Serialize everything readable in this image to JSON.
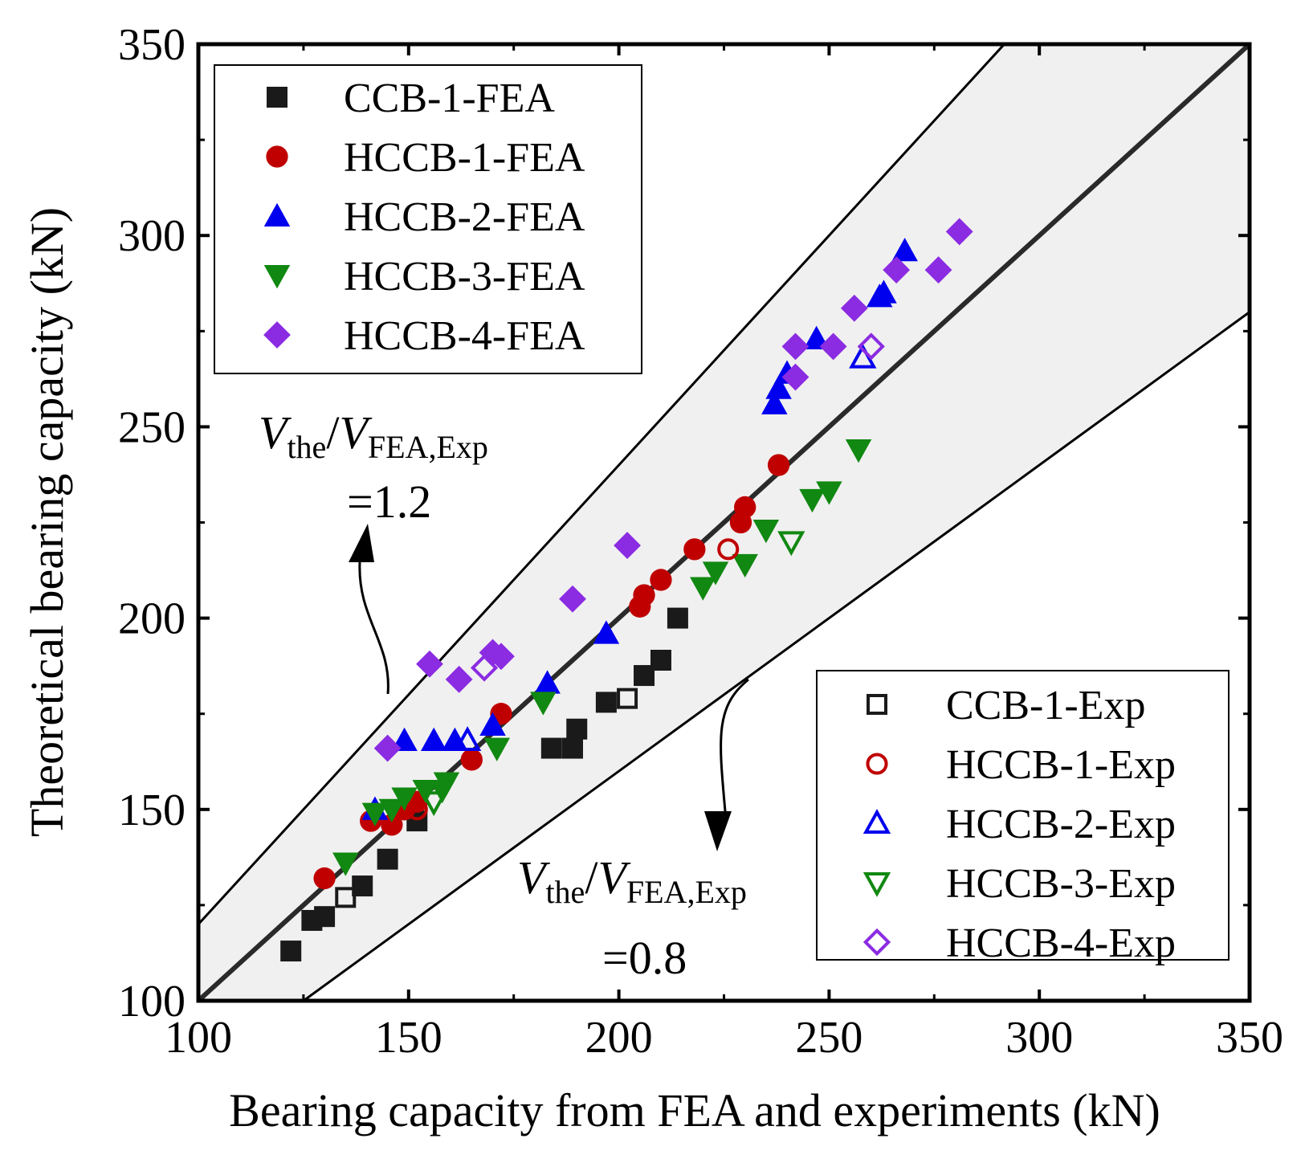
{
  "chart_data": {
    "type": "scatter",
    "title": "",
    "xlabel": "Bearing capacity from FEA and experiments (kN)",
    "ylabel": "Theoretical bearing capacity (kN)",
    "xlim": [
      100,
      350
    ],
    "ylim": [
      100,
      350
    ],
    "xticks": [
      100,
      150,
      200,
      250,
      300,
      350
    ],
    "yticks": [
      100,
      150,
      200,
      250,
      300,
      350
    ],
    "xtick_labels": [
      "100",
      "150",
      "200",
      "250",
      "300",
      "350"
    ],
    "ytick_labels": [
      "100",
      "150",
      "200",
      "250",
      "300",
      "350"
    ],
    "grid": false,
    "reference_lines": [
      {
        "name": "equality",
        "slope": 1.0
      },
      {
        "name": "upper",
        "slope": 1.2
      },
      {
        "name": "lower",
        "slope": 0.8
      }
    ],
    "annotations": {
      "upper": {
        "v1": "V",
        "s1": "the",
        "slash": "/",
        "v2": "V",
        "s2": "FEA,Exp",
        "value": "=1.2"
      },
      "lower": {
        "v1": "V",
        "s1": "the",
        "slash": "/",
        "v2": "V",
        "s2": "FEA,Exp",
        "value": "=0.8"
      }
    },
    "series": [
      {
        "name": "CCB-1-FEA",
        "marker": "square",
        "filled": true,
        "color": "#1a1a1a",
        "points": [
          [
            122,
            113
          ],
          [
            127,
            121
          ],
          [
            130,
            122
          ],
          [
            139,
            130
          ],
          [
            145,
            137
          ],
          [
            152,
            147
          ],
          [
            184,
            166
          ],
          [
            189,
            166
          ],
          [
            190,
            171
          ],
          [
            197,
            178
          ],
          [
            206,
            185
          ],
          [
            210,
            189
          ],
          [
            214,
            200
          ]
        ]
      },
      {
        "name": "HCCB-1-FEA",
        "marker": "circle",
        "filled": true,
        "color": "#c00000",
        "points": [
          [
            130,
            132
          ],
          [
            141,
            147
          ],
          [
            146,
            146
          ],
          [
            149,
            150
          ],
          [
            152,
            152
          ],
          [
            165,
            163
          ],
          [
            172,
            175
          ],
          [
            205,
            203
          ],
          [
            206,
            206
          ],
          [
            210,
            210
          ],
          [
            218,
            218
          ],
          [
            229,
            225
          ],
          [
            230,
            229
          ],
          [
            238,
            240
          ]
        ]
      },
      {
        "name": "HCCB-2-FEA",
        "marker": "triangle-up",
        "filled": true,
        "color": "#0000ee",
        "points": [
          [
            142,
            150
          ],
          [
            149,
            168
          ],
          [
            156,
            168
          ],
          [
            161,
            168
          ],
          [
            170,
            172
          ],
          [
            183,
            183
          ],
          [
            197,
            196
          ],
          [
            237,
            256
          ],
          [
            238,
            260
          ],
          [
            240,
            264
          ],
          [
            247,
            273
          ],
          [
            262,
            284
          ],
          [
            263,
            285
          ],
          [
            268,
            296
          ]
        ]
      },
      {
        "name": "HCCB-3-FEA",
        "marker": "triangle-down",
        "filled": true,
        "color": "#118811",
        "points": [
          [
            135,
            136
          ],
          [
            142,
            149
          ],
          [
            146,
            150
          ],
          [
            149,
            153
          ],
          [
            154,
            155
          ],
          [
            158,
            155
          ],
          [
            159,
            157
          ],
          [
            171,
            166
          ],
          [
            182,
            178
          ],
          [
            220,
            208
          ],
          [
            223,
            212
          ],
          [
            230,
            214
          ],
          [
            235,
            223
          ],
          [
            246,
            231
          ],
          [
            250,
            233
          ],
          [
            257,
            244
          ]
        ]
      },
      {
        "name": "HCCB-4-FEA",
        "marker": "diamond",
        "filled": true,
        "color": "#8b2be2",
        "points": [
          [
            145,
            166
          ],
          [
            155,
            188
          ],
          [
            162,
            184
          ],
          [
            172,
            190
          ],
          [
            170,
            191
          ],
          [
            189,
            205
          ],
          [
            202,
            219
          ],
          [
            242,
            263
          ],
          [
            242,
            271
          ],
          [
            251,
            271
          ],
          [
            256,
            281
          ],
          [
            266,
            291
          ],
          [
            276,
            291
          ],
          [
            281,
            301
          ]
        ]
      },
      {
        "name": "CCB-1-Exp",
        "marker": "square",
        "filled": false,
        "color": "#1a1a1a",
        "points": [
          [
            135,
            127
          ],
          [
            202,
            179
          ]
        ]
      },
      {
        "name": "HCCB-1-Exp",
        "marker": "circle",
        "filled": false,
        "color": "#c00000",
        "points": [
          [
            152,
            150
          ],
          [
            226,
            218
          ]
        ]
      },
      {
        "name": "HCCB-2-Exp",
        "marker": "triangle-up",
        "filled": false,
        "color": "#0000ee",
        "points": [
          [
            164,
            168
          ],
          [
            258,
            268
          ]
        ]
      },
      {
        "name": "HCCB-3-Exp",
        "marker": "triangle-down",
        "filled": false,
        "color": "#118811",
        "points": [
          [
            156,
            152
          ],
          [
            241,
            220
          ]
        ]
      },
      {
        "name": "HCCB-4-Exp",
        "marker": "diamond",
        "filled": false,
        "color": "#8b2be2",
        "points": [
          [
            168,
            187
          ],
          [
            260,
            271
          ]
        ]
      }
    ],
    "legend_fea": [
      "CCB-1-FEA",
      "HCCB-1-FEA",
      "HCCB-2-FEA",
      "HCCB-3-FEA",
      "HCCB-4-FEA"
    ],
    "legend_exp": [
      "CCB-1-Exp",
      "HCCB-1-Exp",
      "HCCB-2-Exp",
      "HCCB-3-Exp",
      "HCCB-4-Exp"
    ],
    "legend_fea_position": "top-left",
    "legend_exp_position": "bottom-right"
  }
}
